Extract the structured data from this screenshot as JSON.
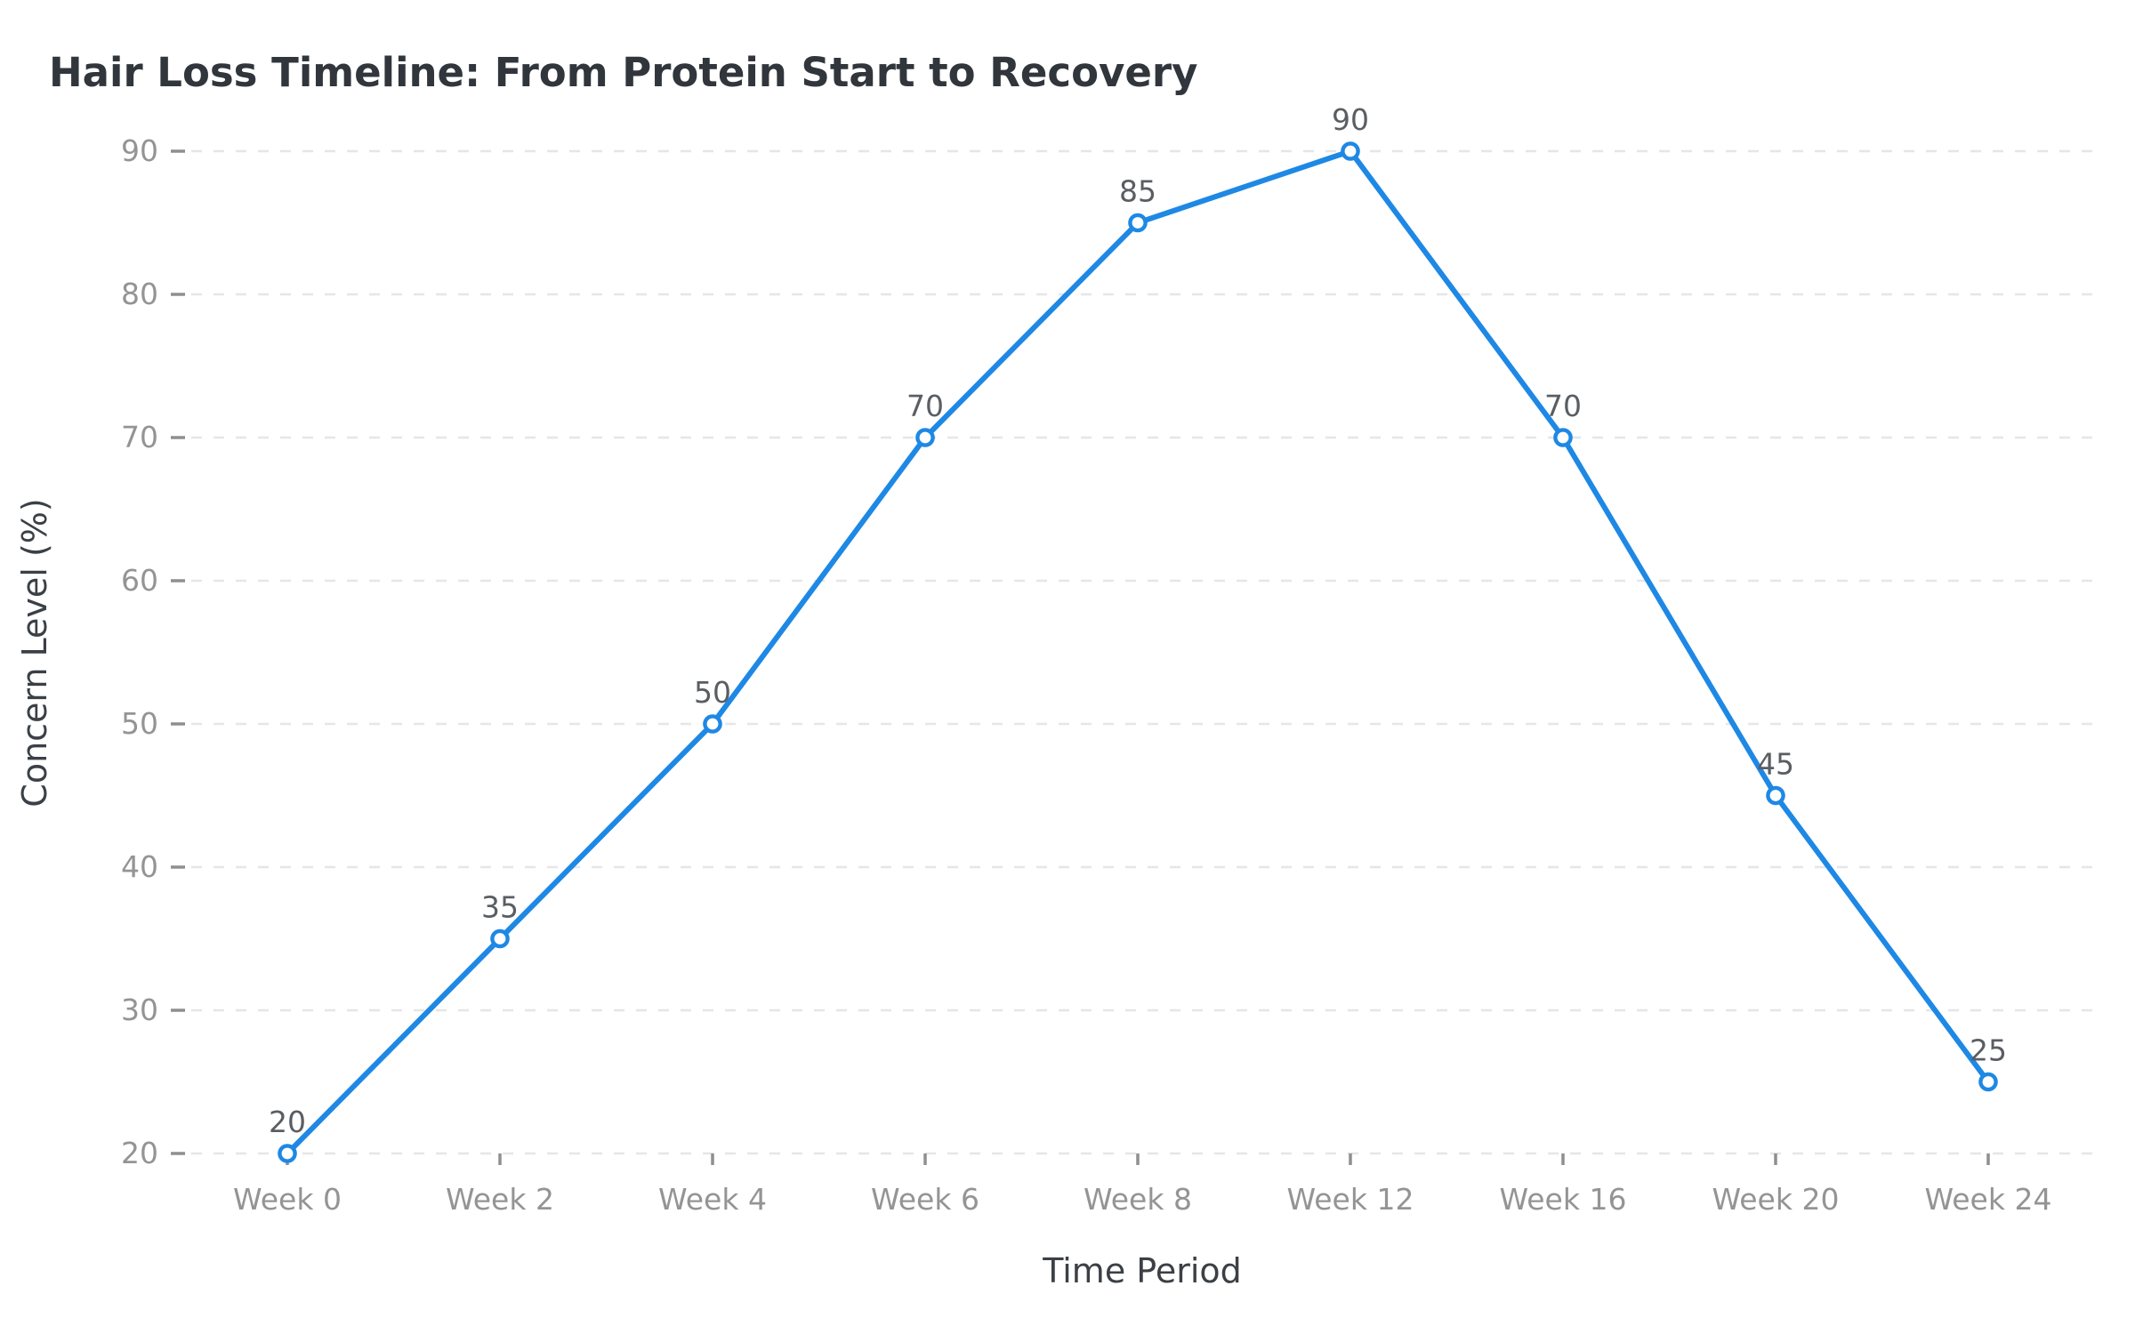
{
  "chart_data": {
    "type": "line",
    "title": "Hair Loss Timeline: From Protein Start to Recovery",
    "xlabel": "Time Period",
    "ylabel": "Concern Level (%)",
    "categories": [
      "Week 0",
      "Week 2",
      "Week 4",
      "Week 6",
      "Week 8",
      "Week 12",
      "Week 16",
      "Week 20",
      "Week 24"
    ],
    "series": [
      {
        "name": "Concern Level",
        "values": [
          20,
          35,
          50,
          70,
          85,
          90,
          70,
          45,
          25
        ]
      }
    ],
    "point_labels": [
      "20",
      "35",
      "50",
      "70",
      "85",
      "90",
      "70",
      "45",
      "25"
    ],
    "ylim": [
      20,
      90
    ],
    "yticks": [
      20,
      30,
      40,
      50,
      60,
      70,
      80,
      90
    ],
    "grid": "horizontal-dashed",
    "legend": "none",
    "marker_style": "open-circle",
    "colors": {
      "background": "#ffffff",
      "line": "#1E88E5",
      "marker_fill": "#ffffff",
      "marker_stroke": "#1E88E5",
      "grid": "#e6e6e6",
      "tick_mark": "#8f8f8f",
      "tick_label": "#949494",
      "axis_title": "#3b4046",
      "title": "#31363c",
      "data_label": "#5a5e63"
    }
  }
}
